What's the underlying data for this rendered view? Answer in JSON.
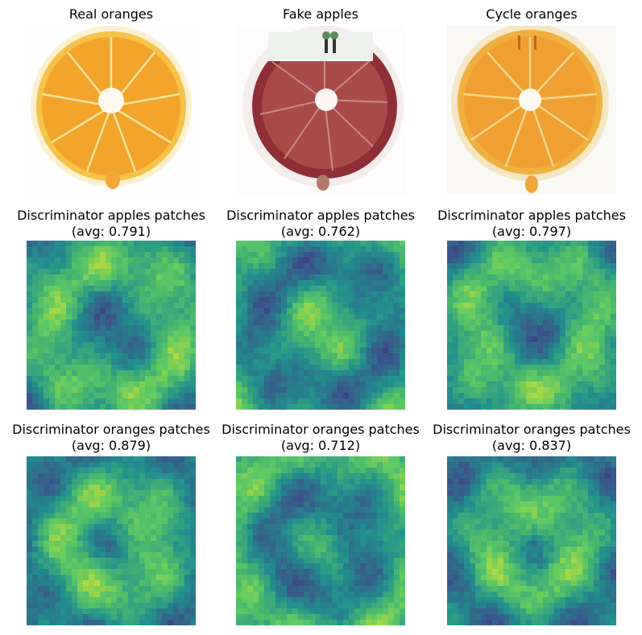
{
  "row1": {
    "titles": [
      "Real oranges",
      "Fake apples",
      "Cycle oranges"
    ],
    "images": [
      {
        "subject": "orange-slice",
        "flesh_color": "#f2a52a"
      },
      {
        "subject": "red-fruit-slice",
        "flesh_color": "#9c3a3a"
      },
      {
        "subject": "orange-slice",
        "flesh_color": "#f0a033"
      }
    ]
  },
  "row2": {
    "title_main": "Discriminator apples patches",
    "avgs": [
      "(avg: 0.791)",
      "(avg: 0.762)",
      "(avg: 0.797)"
    ]
  },
  "row3": {
    "title_main": "Discriminator oranges patches",
    "avgs": [
      "(avg: 0.879)",
      "(avg: 0.712)",
      "(avg: 0.837)"
    ]
  },
  "colormap": "viridis"
}
